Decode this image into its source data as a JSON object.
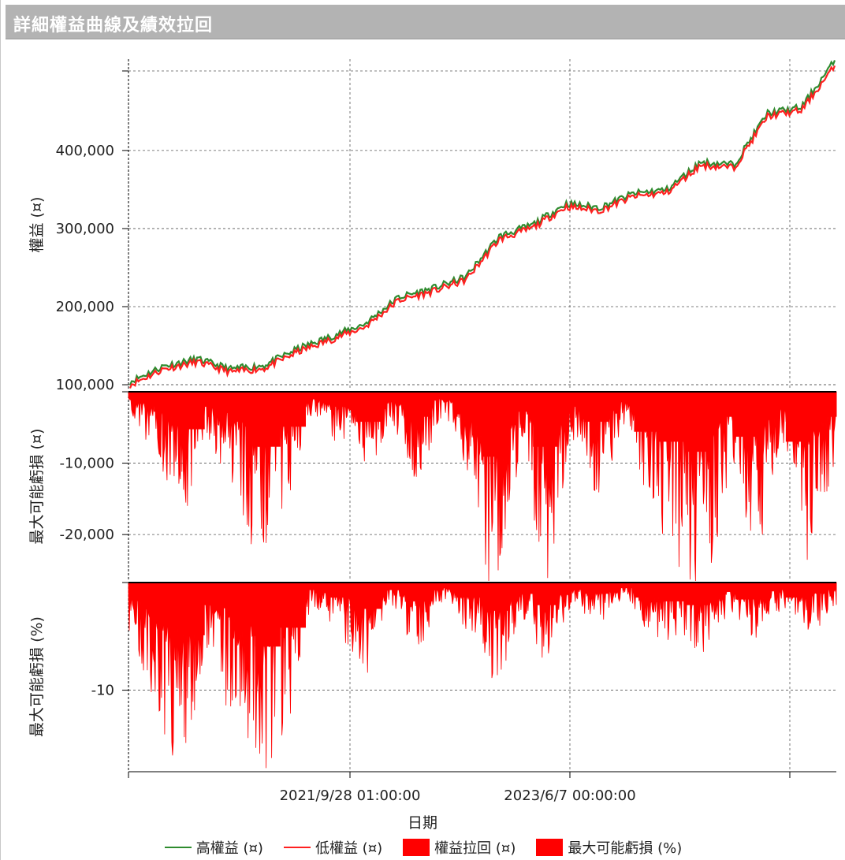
{
  "window": {
    "title": "詳細權益曲線及績效拉回"
  },
  "colors": {
    "high_equity": "#2e8b2e",
    "low_equity": "#ff2020",
    "drawdown_fill": "#ff0000",
    "grid": "#555555",
    "axis": "#000000"
  },
  "chart_data": [
    {
      "type": "line",
      "panel": "equity",
      "title": "",
      "xlabel": "",
      "ylabel": "權益 (¤)",
      "ylim": [
        93000,
        517000
      ],
      "yticks": [
        100000,
        200000,
        300000,
        400000
      ],
      "ytick_labels": [
        "100,000",
        "200,000",
        "300,000",
        "400,000"
      ],
      "grid": true,
      "x": [
        "2020-01",
        "2020-04",
        "2020-07",
        "2020-10",
        "2021-01",
        "2021-04",
        "2021-07",
        "2021-10",
        "2022-01",
        "2022-04",
        "2022-07",
        "2022-10",
        "2023-01",
        "2023-04",
        "2023-07",
        "2023-10",
        "2024-01",
        "2024-04",
        "2024-07",
        "2024-10",
        "2025-01",
        "2025-04"
      ],
      "series": [
        {
          "name": "高權益 (¤)",
          "values": [
            104000,
            124000,
            133000,
            120000,
            125000,
            146000,
            162000,
            178000,
            212000,
            223000,
            238000,
            290000,
            305000,
            332000,
            327000,
            345000,
            350000,
            385000,
            382000,
            448000,
            455000,
            515000
          ]
        },
        {
          "name": "低權益 (¤)",
          "values": [
            100000,
            120000,
            129000,
            116000,
            121000,
            142000,
            158000,
            174000,
            208000,
            219000,
            234000,
            286000,
            301000,
            328000,
            323000,
            341000,
            346000,
            381000,
            378000,
            444000,
            451000,
            508000
          ]
        }
      ]
    },
    {
      "type": "area",
      "panel": "drawdown_amount",
      "ylabel": "最大可能虧損 (¤)",
      "ylim": [
        -26500,
        0
      ],
      "yticks": [
        -10000,
        -20000
      ],
      "ytick_labels": [
        "-10,000",
        "-20,000"
      ],
      "grid": true,
      "series": [
        {
          "name": "權益拉回 (¤)",
          "values": [
            -3000,
            -8000,
            -15000,
            -6000,
            -12000,
            -22000,
            -14000,
            -3000,
            -6000,
            -12000,
            -4000,
            -10000,
            -3000,
            -9000,
            -26000,
            -8000,
            -22000,
            -6000,
            -12000,
            -4000,
            -16000,
            -20000,
            -24000,
            -10000,
            -18000,
            -7000,
            -20000,
            -10000
          ]
        }
      ]
    },
    {
      "type": "area",
      "panel": "drawdown_percent",
      "ylabel": "最大可能虧損 (%)",
      "ylim": [
        -17.5,
        0
      ],
      "yticks": [
        -10
      ],
      "ytick_labels": [
        "-10"
      ],
      "grid": true,
      "series": [
        {
          "name": "最大可能虧損 (%)",
          "values": [
            -4,
            -11,
            -14,
            -6,
            -10,
            -17,
            -12,
            -2,
            -4,
            -7,
            -2,
            -5,
            -1.5,
            -4,
            -7.5,
            -3,
            -6,
            -2,
            -3,
            -1.5,
            -4,
            -5,
            -6,
            -2.5,
            -4.5,
            -2,
            -4,
            -2
          ]
        }
      ]
    }
  ],
  "xaxis": {
    "label": "日期",
    "tick_labels": [
      "2021/9/28 01:00:00",
      "2023/6/7 00:00:00"
    ]
  },
  "legend": [
    {
      "label": "高權益 (¤)",
      "kind": "line",
      "color": "#2e8b2e"
    },
    {
      "label": "低權益 (¤)",
      "kind": "line",
      "color": "#ff2020"
    },
    {
      "label": "權益拉回 (¤)",
      "kind": "box",
      "color": "#ff0000"
    },
    {
      "label": "最大可能虧損 (%)",
      "kind": "box",
      "color": "#ff0000"
    }
  ]
}
